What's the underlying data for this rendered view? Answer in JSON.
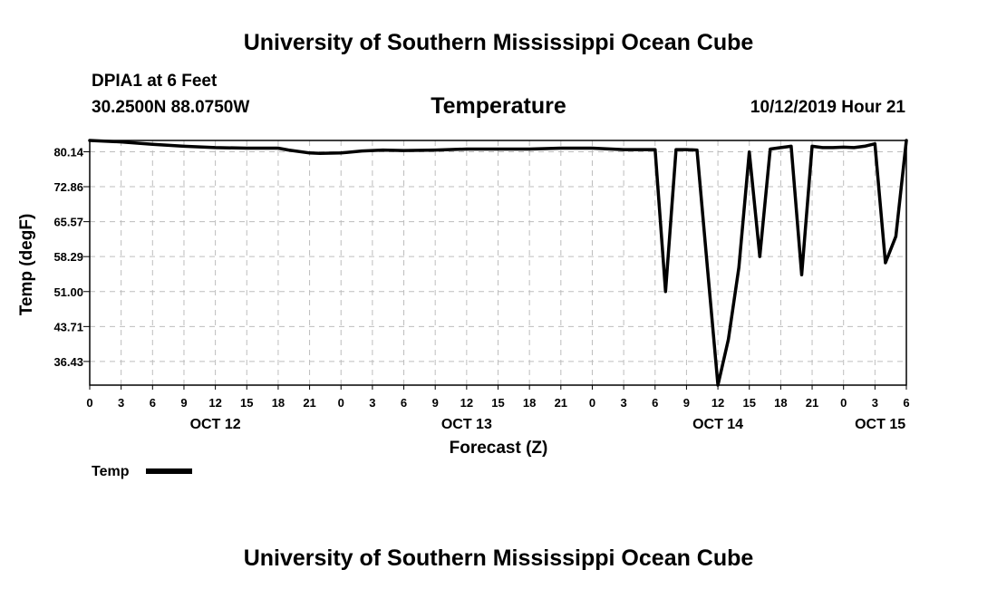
{
  "header": {
    "title": "University of Southern Mississippi Ocean Cube",
    "station": "DPIA1 at 6 Feet",
    "coords": "30.2500N 88.0750W",
    "variable": "Temperature",
    "datetime": "10/12/2019 Hour 21"
  },
  "footer": {
    "title": "University of Southern Mississippi Ocean Cube"
  },
  "chart_data": {
    "type": "line",
    "title": "Temperature",
    "xlabel": "Forecast (Z)",
    "ylabel": "Temp (degF)",
    "ylim": [
      31.5,
      82.5
    ],
    "yticks": [
      36.43,
      43.71,
      51.0,
      58.29,
      65.57,
      72.86,
      80.14
    ],
    "ytick_labels": [
      "36.43",
      "43.71",
      "51.00",
      "58.29",
      "65.57",
      "72.86",
      "80.14"
    ],
    "xlim": [
      0,
      78
    ],
    "xticks": [
      0,
      3,
      6,
      9,
      12,
      15,
      18,
      21,
      24,
      27,
      30,
      33,
      36,
      39,
      42,
      45,
      48,
      51,
      54,
      57,
      60,
      63,
      66,
      69,
      72,
      75,
      78
    ],
    "xtick_labels": [
      "0",
      "3",
      "6",
      "9",
      "12",
      "15",
      "18",
      "21",
      "0",
      "3",
      "6",
      "9",
      "12",
      "15",
      "18",
      "21",
      "0",
      "3",
      "6",
      "9",
      "12",
      "15",
      "18",
      "21",
      "0",
      "3",
      "6"
    ],
    "date_labels": [
      {
        "hour": 12,
        "label": "OCT 12"
      },
      {
        "hour": 36,
        "label": "OCT 13"
      },
      {
        "hour": 60,
        "label": "OCT 14"
      },
      {
        "hour": 75.5,
        "label": "OCT 15"
      }
    ],
    "grid": true,
    "legend": {
      "position": "bottom-left",
      "entries": [
        "Temp"
      ]
    },
    "series": [
      {
        "name": "Temp",
        "color": "#000000",
        "x": [
          0,
          3,
          6,
          9,
          12,
          15,
          18,
          19,
          21,
          22,
          24,
          26,
          28,
          30,
          33,
          36,
          39,
          42,
          45,
          48,
          51,
          54,
          55,
          56,
          57,
          58,
          59,
          60,
          61,
          62,
          63,
          64,
          65,
          66,
          67,
          68,
          69,
          70,
          71,
          72,
          73,
          74,
          75,
          76,
          77,
          78
        ],
        "y": [
          82.5,
          82.2,
          81.7,
          81.3,
          81.0,
          80.9,
          80.9,
          80.5,
          79.9,
          79.8,
          79.9,
          80.3,
          80.5,
          80.4,
          80.5,
          80.7,
          80.7,
          80.7,
          80.9,
          80.9,
          80.6,
          80.6,
          51.0,
          80.6,
          80.6,
          80.5,
          56.0,
          31.5,
          41.0,
          56.0,
          80.1,
          58.3,
          80.7,
          81.0,
          81.3,
          54.5,
          81.3,
          81.0,
          81.0,
          81.1,
          81.0,
          81.3,
          81.8,
          57.0,
          62.5,
          82.5
        ]
      }
    ]
  }
}
